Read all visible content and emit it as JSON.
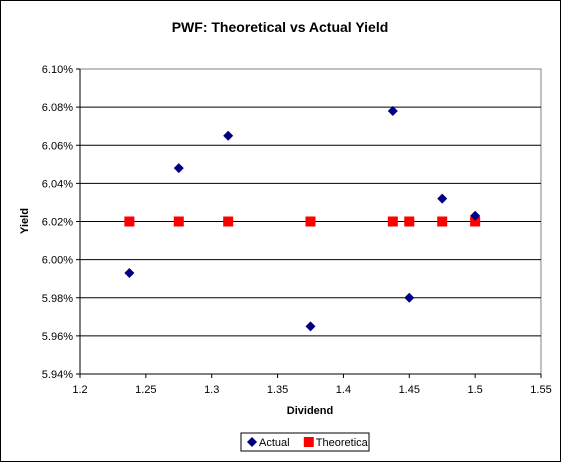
{
  "chart_data": {
    "type": "scatter",
    "title": "PWF: Theoretical vs Actual Yield",
    "xlabel": "Dividend",
    "ylabel": "Yield",
    "xlim": [
      1.2,
      1.55
    ],
    "ylim": [
      0.0594,
      0.061
    ],
    "x_ticks": [
      "1.2",
      "1.25",
      "1.3",
      "1.35",
      "1.4",
      "1.45",
      "1.5",
      "1.55"
    ],
    "y_ticks": [
      "5.94%",
      "5.96%",
      "5.98%",
      "6.00%",
      "6.02%",
      "6.04%",
      "6.06%",
      "6.08%",
      "6.10%"
    ],
    "grid": "horizontal",
    "legend": "bottom",
    "plot_background": "#ffffff",
    "series": [
      {
        "name": "Actual",
        "marker": "diamond",
        "color": "#000080",
        "x": [
          1.2375,
          1.275,
          1.3125,
          1.375,
          1.4375,
          1.45,
          1.475,
          1.5
        ],
        "y": [
          0.05993,
          0.06048,
          0.06065,
          0.05965,
          0.06078,
          0.0598,
          0.06032,
          0.06023
        ]
      },
      {
        "name": "Theoretical",
        "marker": "square",
        "color": "#ff0000",
        "x": [
          1.2375,
          1.275,
          1.3125,
          1.375,
          1.4375,
          1.45,
          1.475,
          1.5
        ],
        "y": [
          0.0602,
          0.0602,
          0.0602,
          0.0602,
          0.0602,
          0.0602,
          0.0602,
          0.0602
        ]
      }
    ]
  }
}
